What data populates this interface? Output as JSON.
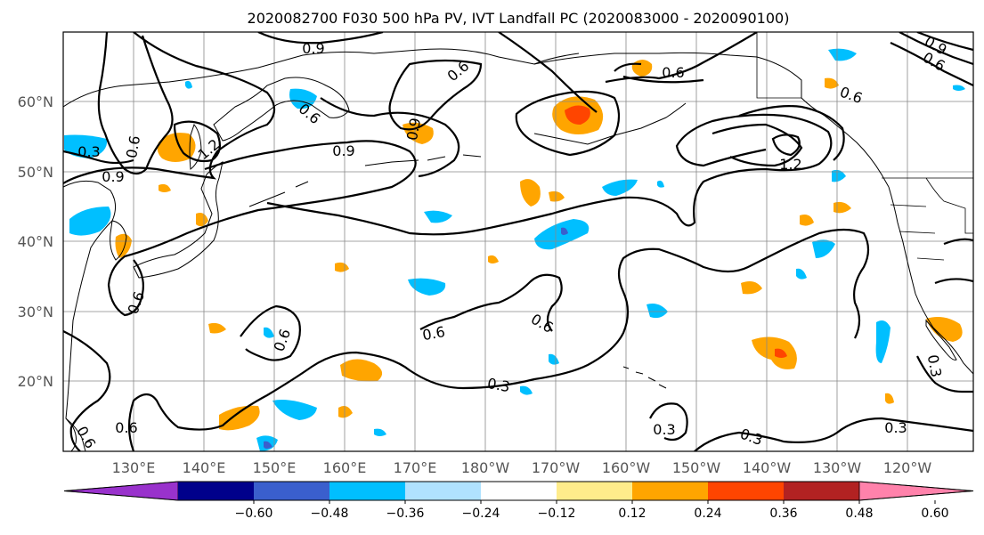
{
  "title": "2020082700 F030 500 hPa PV, IVT Landfall PC (2020083000 - 2020090100)",
  "lat_labels": [
    "60°N",
    "50°N",
    "40°N",
    "30°N",
    "20°N"
  ],
  "lon_labels": [
    "130°E",
    "140°E",
    "150°E",
    "160°E",
    "170°E",
    "180°W",
    "170°W",
    "160°W",
    "150°W",
    "140°W",
    "130°W",
    "120°W"
  ],
  "contour_labels": [
    "0.9",
    "0.6",
    "0.6",
    "0.9",
    "0.6",
    "0.3",
    "0.6",
    "0.9",
    "0.9",
    "1.2",
    "0.6",
    "0.6",
    "0.3",
    "0.6",
    "0.6",
    "0.3",
    "0.3",
    "0.3",
    "0.3",
    "0.6",
    "0.6",
    "1.2",
    "0.9",
    "0.6",
    "0.6"
  ],
  "colorbar": {
    "ticks": [
      "−0.60",
      "−0.48",
      "−0.36",
      "−0.24",
      "−0.12",
      "0.12",
      "0.24",
      "0.36",
      "0.48",
      "0.60"
    ],
    "colors": [
      "#9932cc",
      "#00008b",
      "#3a5fcd",
      "#00bfff",
      "#b0e2ff",
      "#ffffff",
      "#ffec8b",
      "#ffa500",
      "#ff4500",
      "#b22222",
      "#ff82ab"
    ]
  }
}
